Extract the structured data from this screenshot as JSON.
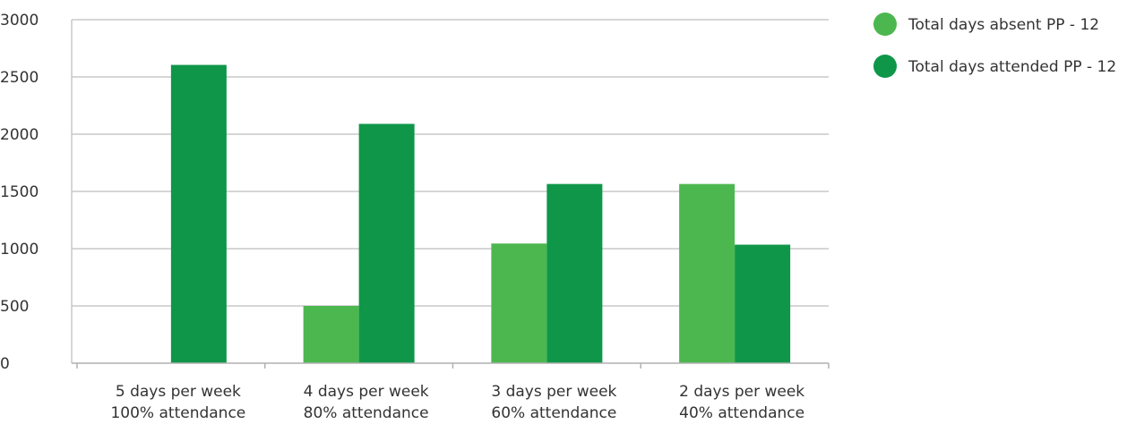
{
  "chart_data": {
    "type": "bar",
    "categories": [
      [
        "5 days per week",
        "100% attendance"
      ],
      [
        "4 days per week",
        "80% attendance"
      ],
      [
        "3 days per week",
        "60% attendance"
      ],
      [
        "2 days per week",
        "40% attendance"
      ]
    ],
    "series": [
      {
        "name": "Total days absent PP - 12",
        "color": "#4db74f",
        "values": [
          0,
          500,
          1045,
          1565
        ]
      },
      {
        "name": "Total days attended PP - 12",
        "color": "#0f9649",
        "values": [
          2605,
          2090,
          1565,
          1035
        ]
      }
    ],
    "title": "",
    "xlabel": "",
    "ylabel": "",
    "ylim": [
      0,
      3000
    ],
    "yticks": [
      0,
      500,
      1000,
      1500,
      2000,
      2500,
      3000
    ],
    "grid": true,
    "legend": "top-right"
  }
}
